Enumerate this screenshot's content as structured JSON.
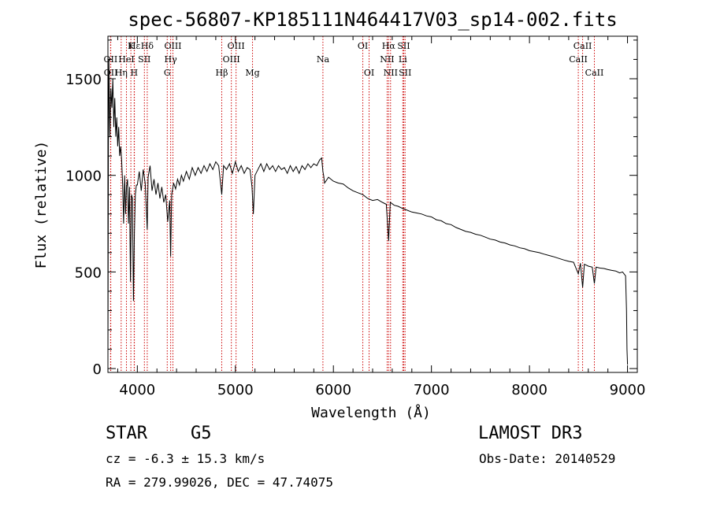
{
  "chart_data": {
    "type": "line",
    "title": "spec-56807-KP185111N464417V03_sp14-002.fits",
    "xlabel": "Wavelength (Å)",
    "ylabel": "Flux (relative)",
    "xlim": [
      3700,
      9100
    ],
    "ylim": [
      -20,
      1720
    ],
    "x_ticks": [
      4000,
      5000,
      6000,
      7000,
      8000,
      9000
    ],
    "x_tick_labels": [
      "4000",
      "5000",
      "6000",
      "7000",
      "8000",
      "9000"
    ],
    "y_ticks": [
      0,
      500,
      1000,
      1500
    ],
    "y_tick_labels": [
      "0",
      "500",
      "1000",
      "1500"
    ],
    "series": [
      {
        "name": "flux",
        "color": "#000000",
        "points": [
          [
            3700,
            20
          ],
          [
            3705,
            1150
          ],
          [
            3710,
            1600
          ],
          [
            3720,
            1200
          ],
          [
            3730,
            1450
          ],
          [
            3740,
            1350
          ],
          [
            3750,
            1500
          ],
          [
            3760,
            1250
          ],
          [
            3770,
            1400
          ],
          [
            3780,
            1200
          ],
          [
            3790,
            1300
          ],
          [
            3800,
            1150
          ],
          [
            3810,
            1250
          ],
          [
            3820,
            1100
          ],
          [
            3830,
            1150
          ],
          [
            3840,
            1080
          ],
          [
            3850,
            950
          ],
          [
            3860,
            750
          ],
          [
            3870,
            1000
          ],
          [
            3880,
            800
          ],
          [
            3890,
            940
          ],
          [
            3900,
            980
          ],
          [
            3910,
            750
          ],
          [
            3920,
            940
          ],
          [
            3930,
            450
          ],
          [
            3940,
            900
          ],
          [
            3950,
            880
          ],
          [
            3960,
            350
          ],
          [
            3970,
            700
          ],
          [
            3980,
            900
          ],
          [
            3990,
            950
          ],
          [
            4000,
            950
          ],
          [
            4020,
            1020
          ],
          [
            4040,
            920
          ],
          [
            4060,
            1030
          ],
          [
            4080,
            960
          ],
          [
            4101,
            720
          ],
          [
            4110,
            990
          ],
          [
            4130,
            1050
          ],
          [
            4150,
            920
          ],
          [
            4170,
            980
          ],
          [
            4190,
            900
          ],
          [
            4210,
            960
          ],
          [
            4230,
            880
          ],
          [
            4250,
            940
          ],
          [
            4270,
            860
          ],
          [
            4290,
            900
          ],
          [
            4310,
            760
          ],
          [
            4330,
            870
          ],
          [
            4340,
            580
          ],
          [
            4350,
            900
          ],
          [
            4370,
            960
          ],
          [
            4390,
            930
          ],
          [
            4410,
            980
          ],
          [
            4430,
            950
          ],
          [
            4450,
            1000
          ],
          [
            4470,
            970
          ],
          [
            4500,
            1020
          ],
          [
            4530,
            980
          ],
          [
            4560,
            1040
          ],
          [
            4590,
            1000
          ],
          [
            4620,
            1040
          ],
          [
            4650,
            1010
          ],
          [
            4680,
            1050
          ],
          [
            4710,
            1020
          ],
          [
            4740,
            1060
          ],
          [
            4770,
            1030
          ],
          [
            4800,
            1070
          ],
          [
            4830,
            1050
          ],
          [
            4861,
            900
          ],
          [
            4880,
            1050
          ],
          [
            4910,
            1030
          ],
          [
            4940,
            1060
          ],
          [
            4970,
            1010
          ],
          [
            5000,
            1070
          ],
          [
            5030,
            1020
          ],
          [
            5060,
            1050
          ],
          [
            5090,
            1010
          ],
          [
            5120,
            1040
          ],
          [
            5150,
            1030
          ],
          [
            5170,
            940
          ],
          [
            5183,
            800
          ],
          [
            5200,
            1000
          ],
          [
            5230,
            1030
          ],
          [
            5260,
            1060
          ],
          [
            5290,
            1020
          ],
          [
            5320,
            1060
          ],
          [
            5350,
            1030
          ],
          [
            5380,
            1050
          ],
          [
            5410,
            1020
          ],
          [
            5440,
            1050
          ],
          [
            5470,
            1030
          ],
          [
            5500,
            1040
          ],
          [
            5530,
            1010
          ],
          [
            5560,
            1050
          ],
          [
            5590,
            1020
          ],
          [
            5620,
            1045
          ],
          [
            5650,
            1010
          ],
          [
            5680,
            1050
          ],
          [
            5710,
            1030
          ],
          [
            5740,
            1060
          ],
          [
            5770,
            1040
          ],
          [
            5800,
            1060
          ],
          [
            5830,
            1050
          ],
          [
            5860,
            1080
          ],
          [
            5880,
            1090
          ],
          [
            5893,
            1020
          ],
          [
            5900,
            1000
          ],
          [
            5910,
            960
          ],
          [
            5950,
            990
          ],
          [
            6000,
            970
          ],
          [
            6050,
            960
          ],
          [
            6100,
            955
          ],
          [
            6150,
            935
          ],
          [
            6200,
            920
          ],
          [
            6250,
            910
          ],
          [
            6300,
            900
          ],
          [
            6350,
            880
          ],
          [
            6400,
            870
          ],
          [
            6450,
            875
          ],
          [
            6500,
            860
          ],
          [
            6540,
            850
          ],
          [
            6563,
            660
          ],
          [
            6580,
            860
          ],
          [
            6620,
            845
          ],
          [
            6660,
            840
          ],
          [
            6700,
            830
          ],
          [
            6750,
            820
          ],
          [
            6800,
            810
          ],
          [
            6850,
            805
          ],
          [
            6900,
            800
          ],
          [
            6950,
            790
          ],
          [
            7000,
            785
          ],
          [
            7050,
            770
          ],
          [
            7100,
            765
          ],
          [
            7150,
            750
          ],
          [
            7200,
            745
          ],
          [
            7250,
            730
          ],
          [
            7300,
            720
          ],
          [
            7350,
            710
          ],
          [
            7400,
            705
          ],
          [
            7450,
            695
          ],
          [
            7500,
            690
          ],
          [
            7550,
            680
          ],
          [
            7600,
            670
          ],
          [
            7650,
            665
          ],
          [
            7700,
            655
          ],
          [
            7750,
            650
          ],
          [
            7800,
            640
          ],
          [
            7850,
            635
          ],
          [
            7900,
            625
          ],
          [
            7950,
            620
          ],
          [
            8000,
            610
          ],
          [
            8050,
            605
          ],
          [
            8100,
            600
          ],
          [
            8150,
            592
          ],
          [
            8200,
            585
          ],
          [
            8250,
            578
          ],
          [
            8300,
            570
          ],
          [
            8350,
            562
          ],
          [
            8400,
            555
          ],
          [
            8450,
            550
          ],
          [
            8498,
            490
          ],
          [
            8520,
            545
          ],
          [
            8542,
            420
          ],
          [
            8560,
            540
          ],
          [
            8600,
            530
          ],
          [
            8640,
            525
          ],
          [
            8662,
            440
          ],
          [
            8680,
            525
          ],
          [
            8720,
            520
          ],
          [
            8760,
            518
          ],
          [
            8800,
            512
          ],
          [
            8840,
            508
          ],
          [
            8880,
            505
          ],
          [
            8920,
            495
          ],
          [
            8950,
            500
          ],
          [
            8980,
            480
          ],
          [
            8990,
            300
          ],
          [
            8995,
            100
          ],
          [
            9000,
            20
          ]
        ]
      }
    ],
    "line_markers": [
      {
        "label": "Hα",
        "x": 6563,
        "row": 1
      },
      {
        "label": "Hβ",
        "x": 4861,
        "row": 3
      },
      {
        "label": "Hγ",
        "x": 4340,
        "row": 2
      },
      {
        "label": "Hδ",
        "x": 4101,
        "row": 1
      },
      {
        "label": "Hε",
        "x": 3970,
        "row": 1
      },
      {
        "label": "Hη",
        "x": 3835,
        "row": 3
      },
      {
        "label": "K",
        "x": 3934,
        "row": 1
      },
      {
        "label": "H",
        "x": 3968,
        "row": 3
      },
      {
        "label": "G",
        "x": 4305,
        "row": 3
      },
      {
        "label": "Mg",
        "x": 5175,
        "row": 3
      },
      {
        "label": "Na",
        "x": 5893,
        "row": 2
      },
      {
        "label": "OII",
        "x": 3727,
        "row": 2
      },
      {
        "label": "OII",
        "x": 3729,
        "row": 3
      },
      {
        "label": "HeI",
        "x": 3889,
        "row": 2
      },
      {
        "label": "SII",
        "x": 4072,
        "row": 2
      },
      {
        "label": "OIII",
        "x": 4363,
        "row": 1
      },
      {
        "label": "OIII",
        "x": 4959,
        "row": 2
      },
      {
        "label": "OIII",
        "x": 5007,
        "row": 1
      },
      {
        "label": "OI",
        "x": 6300,
        "row": 1
      },
      {
        "label": "OI",
        "x": 6364,
        "row": 3
      },
      {
        "label": "NII",
        "x": 6548,
        "row": 2
      },
      {
        "label": "NII",
        "x": 6583,
        "row": 3
      },
      {
        "label": "Li",
        "x": 6708,
        "row": 2
      },
      {
        "label": "SII",
        "x": 6717,
        "row": 1
      },
      {
        "label": "SII",
        "x": 6731,
        "row": 3
      },
      {
        "label": "CaII",
        "x": 8498,
        "row": 2
      },
      {
        "label": "CaII",
        "x": 8542,
        "row": 1
      },
      {
        "label": "CaII",
        "x": 8662,
        "row": 3
      }
    ],
    "marker_color": "#cc0000",
    "grid": false,
    "legend": "none"
  },
  "footer": {
    "object_class": "STAR",
    "subclass": "G5",
    "survey": "LAMOST DR3",
    "redshift": "cz = -6.3 ± 15.3 km/s",
    "obs_date": "Obs-Date: 20140529",
    "coords": "RA = 279.99026, DEC =  47.74075"
  }
}
